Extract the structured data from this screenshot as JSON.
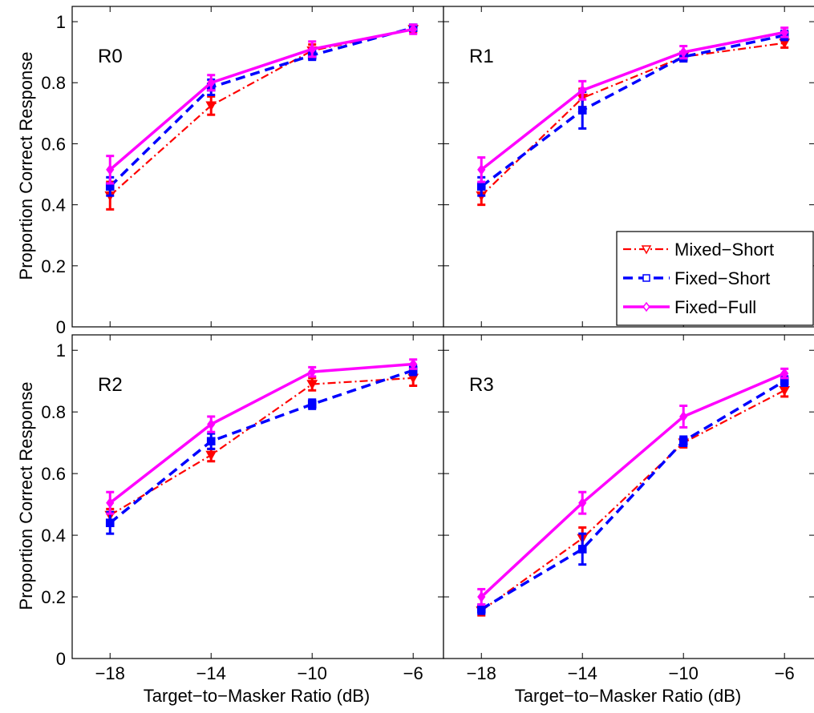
{
  "chart_data": {
    "type": "line",
    "ylabel": "Proportion Correct Response",
    "xlabel": "Target−to−Masker Ratio (dB)",
    "x": [
      -18,
      -14,
      -10,
      -6
    ],
    "xticks": [
      "−18",
      "−14",
      "−10",
      "−6"
    ],
    "ylim": [
      0,
      1.05
    ],
    "yticks": [
      0,
      0.2,
      0.4,
      0.6,
      0.8,
      1
    ],
    "ytick_labels": [
      "0",
      "0.2",
      "0.4",
      "0.6",
      "0.8",
      "1"
    ],
    "grid": false,
    "legend": {
      "panel": "R1",
      "placement": "bottom-right",
      "entries": [
        "Mixed−Short",
        "Fixed−Short",
        "Fixed−Full"
      ]
    },
    "series_styles": [
      {
        "name": "Mixed−Short",
        "color": "#ff0000",
        "dash": "dashdot",
        "marker": "triangle-down"
      },
      {
        "name": "Fixed−Short",
        "color": "#0000ff",
        "dash": "dashed",
        "marker": "square"
      },
      {
        "name": "Fixed−Full",
        "color": "#ff00ff",
        "dash": "solid",
        "marker": "diamond"
      }
    ],
    "panels": [
      {
        "title": "R0",
        "series": [
          {
            "name": "Mixed−Short",
            "values": [
              0.43,
              0.725,
              0.905,
              0.975
            ],
            "errors": [
              0.045,
              0.03,
              0.02,
              0.01
            ]
          },
          {
            "name": "Fixed−Short",
            "values": [
              0.46,
              0.785,
              0.89,
              0.98
            ],
            "errors": [
              0.03,
              0.025,
              0.015,
              0.01
            ]
          },
          {
            "name": "Fixed−Full",
            "values": [
              0.515,
              0.8,
              0.91,
              0.975
            ],
            "errors": [
              0.045,
              0.025,
              0.025,
              0.015
            ]
          }
        ]
      },
      {
        "title": "R1",
        "series": [
          {
            "name": "Mixed−Short",
            "values": [
              0.43,
              0.75,
              0.885,
              0.93
            ],
            "errors": [
              0.03,
              0.03,
              0.015,
              0.015
            ]
          },
          {
            "name": "Fixed−Short",
            "values": [
              0.46,
              0.71,
              0.885,
              0.955
            ],
            "errors": [
              0.03,
              0.06,
              0.015,
              0.015
            ]
          },
          {
            "name": "Fixed−Full",
            "values": [
              0.515,
              0.775,
              0.9,
              0.965
            ],
            "errors": [
              0.04,
              0.03,
              0.02,
              0.015
            ]
          }
        ]
      },
      {
        "title": "R2",
        "series": [
          {
            "name": "Mixed−Short",
            "values": [
              0.465,
              0.66,
              0.89,
              0.91
            ],
            "errors": [
              0.02,
              0.02,
              0.02,
              0.025
            ]
          },
          {
            "name": "Fixed−Short",
            "values": [
              0.44,
              0.705,
              0.825,
              0.935
            ],
            "errors": [
              0.035,
              0.025,
              0.015,
              0.015
            ]
          },
          {
            "name": "Fixed−Full",
            "values": [
              0.505,
              0.76,
              0.93,
              0.955
            ],
            "errors": [
              0.035,
              0.025,
              0.015,
              0.015
            ]
          }
        ]
      },
      {
        "title": "R3",
        "series": [
          {
            "name": "Mixed−Short",
            "values": [
              0.155,
              0.39,
              0.7,
              0.87
            ],
            "errors": [
              0.015,
              0.035,
              0.015,
              0.02
            ]
          },
          {
            "name": "Fixed−Short",
            "values": [
              0.16,
              0.355,
              0.705,
              0.9
            ],
            "errors": [
              0.015,
              0.05,
              0.015,
              0.015
            ]
          },
          {
            "name": "Fixed−Full",
            "values": [
              0.2,
              0.505,
              0.785,
              0.925
            ],
            "errors": [
              0.025,
              0.035,
              0.035,
              0.015
            ]
          }
        ]
      }
    ]
  }
}
